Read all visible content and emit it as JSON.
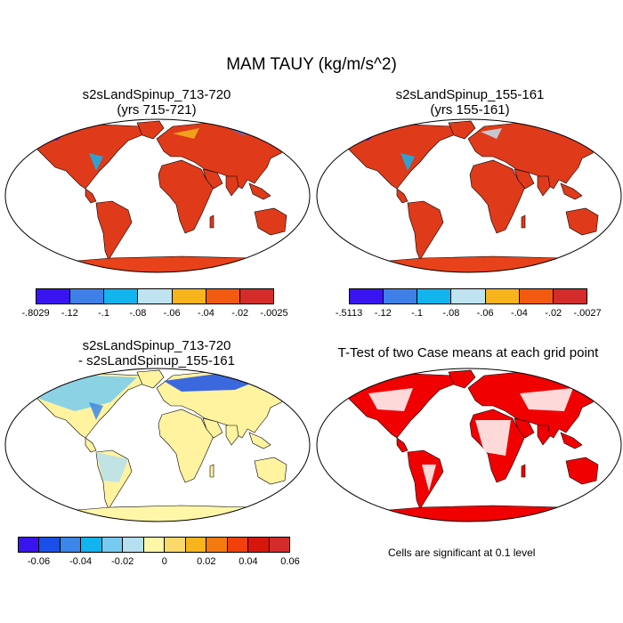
{
  "title": "MAM TAUY (kg/m/s^2)",
  "panels": [
    {
      "title_line1": "s2sLandSpinup_713-720",
      "title_line2": "(yrs 715-721)"
    },
    {
      "title_line1": "s2sLandSpinup_155-161",
      "title_line2": "(yrs 155-161)"
    },
    {
      "title_line1": "s2sLandSpinup_713-720",
      "title_line2": "- s2sLandSpinup_155-161"
    },
    {
      "title_line1": "T-Test of two Case means at each grid point",
      "title_line2": ""
    }
  ],
  "colorbar1": {
    "colors": [
      "#3a14f0",
      "#3f7fe8",
      "#12b4ee",
      "#bfe3f0",
      "#f7b41d",
      "#f25a10",
      "#d42b2b"
    ],
    "labels": [
      "-.8029",
      "-.12",
      "-.1",
      "-.08",
      "-.06",
      "-.04",
      "-.02",
      "-.0025"
    ]
  },
  "colorbar2": {
    "colors": [
      "#3a14f0",
      "#3f7fe8",
      "#12b4ee",
      "#bfe3f0",
      "#f7b41d",
      "#f25a10",
      "#d42b2b"
    ],
    "labels": [
      "-.5113",
      "-.12",
      "-.1",
      "-.08",
      "-.06",
      "-.04",
      "-.02",
      "-.0027"
    ]
  },
  "colorbar3": {
    "colors": [
      "#3a14f0",
      "#1a4fe8",
      "#3b86e8",
      "#12b4ee",
      "#77cbf0",
      "#b6dff0",
      "#fff6a8",
      "#fbd86a",
      "#f7b41d",
      "#f47a10",
      "#f0400c",
      "#d8170c",
      "#d42b2b"
    ],
    "labels": [
      "-0.06",
      "-0.04",
      "-0.02",
      "0",
      "0.02",
      "0.04",
      "0.06"
    ]
  },
  "note": "Cells are significant at 0.1 level",
  "map_colors": {
    "panel1_land": "#df3a1a",
    "panel2_land": "#df3a1a",
    "panel3_land": "#fff3a0",
    "panel4_land": "#f00000",
    "antarctica": "#e8421a"
  }
}
